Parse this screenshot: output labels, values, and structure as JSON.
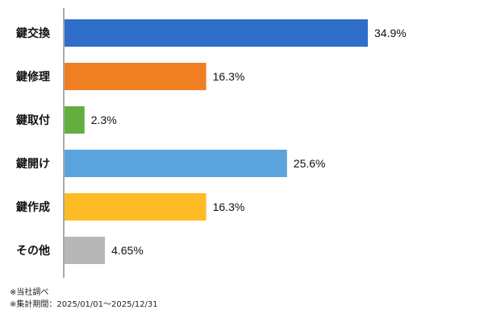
{
  "chart_data": {
    "type": "bar",
    "orientation": "horizontal",
    "categories": [
      "鍵交換",
      "鍵修理",
      "鍵取付",
      "鍵開け",
      "鍵作成",
      "その他"
    ],
    "values": [
      34.9,
      16.3,
      2.3,
      25.6,
      16.3,
      4.65
    ],
    "value_labels": [
      "34.9%",
      "16.3%",
      "2.3%",
      "25.6%",
      "16.3%",
      "4.65%"
    ],
    "unit": "%",
    "colors": [
      "#2f6fc9",
      "#f07f23",
      "#63ae3f",
      "#5ba3dd",
      "#fdbb26",
      "#b7b7b7"
    ],
    "xlim": [
      0,
      50
    ],
    "grid": false,
    "legend": "none"
  },
  "footnotes": {
    "line1": "※当社調べ",
    "line2": "※集計期間：2025/01/01～2025/12/31"
  }
}
